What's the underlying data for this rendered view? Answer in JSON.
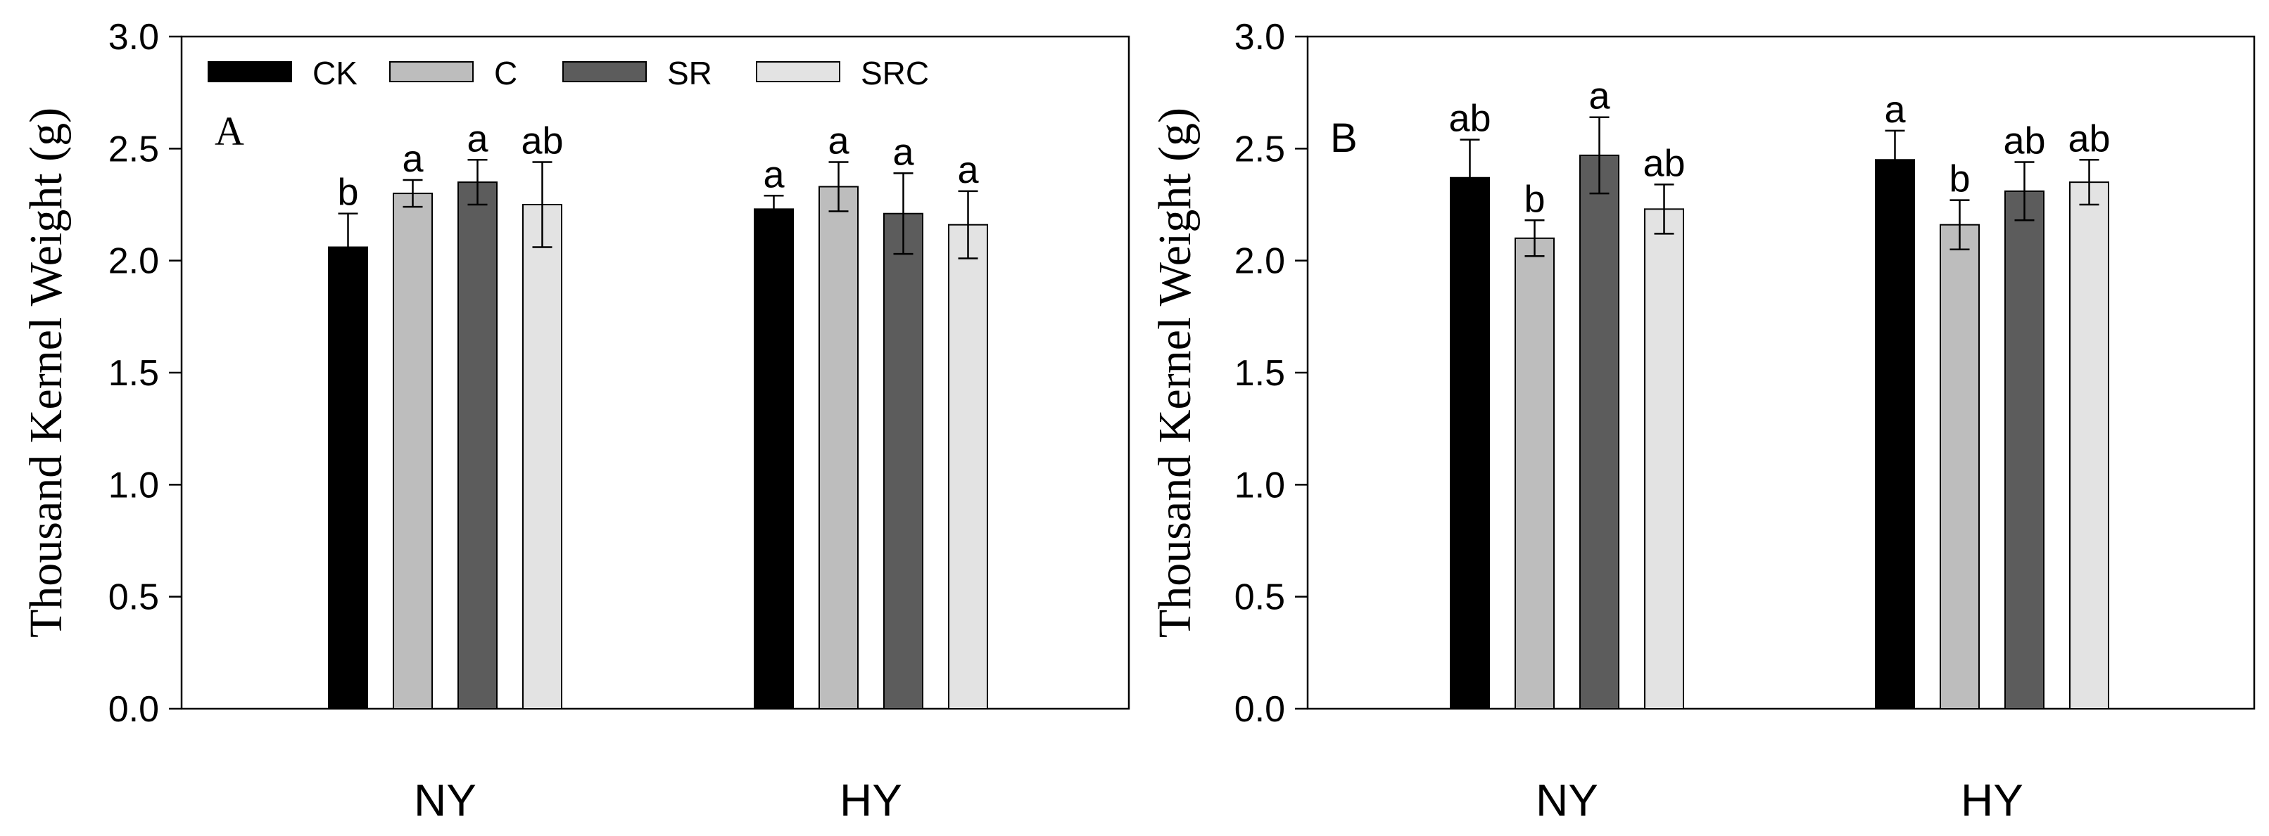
{
  "chart_data": [
    {
      "type": "bar",
      "panel_label": "A",
      "panel_label_font": "serif",
      "ylabel": "Thousand Kernel Weight (g)",
      "xlabel": "",
      "ylim": [
        0,
        3.0
      ],
      "yticks": [
        "0.0",
        "0.5",
        "1.0",
        "1.5",
        "2.0",
        "2.5",
        "3.0"
      ],
      "grid": false,
      "legend": {
        "placement": "top-left",
        "entries": [
          "CK",
          "C",
          "SR",
          "SRC"
        ]
      },
      "categories": [
        "NY",
        "HY"
      ],
      "series": [
        {
          "name": "CK",
          "color": "#000000",
          "values": [
            2.06,
            2.23
          ],
          "errors": [
            0.15,
            0.06
          ],
          "letters": [
            "b",
            "a"
          ]
        },
        {
          "name": "C",
          "color": "#bdbdbd",
          "values": [
            2.3,
            2.33
          ],
          "errors": [
            0.06,
            0.11
          ],
          "letters": [
            "a",
            "a"
          ]
        },
        {
          "name": "SR",
          "color": "#5c5c5c",
          "values": [
            2.35,
            2.21
          ],
          "errors": [
            0.1,
            0.18
          ],
          "letters": [
            "a",
            "a"
          ]
        },
        {
          "name": "SRC",
          "color": "#e3e3e3",
          "values": [
            2.25,
            2.16
          ],
          "errors": [
            0.19,
            0.15
          ],
          "letters": [
            "ab",
            "a"
          ]
        }
      ]
    },
    {
      "type": "bar",
      "panel_label": "B",
      "panel_label_font": "sans",
      "ylabel": "Thousand Kernel Weight (g)",
      "xlabel": "",
      "ylim": [
        0,
        3.0
      ],
      "yticks": [
        "0.0",
        "0.5",
        "1.0",
        "1.5",
        "2.0",
        "2.5",
        "3.0"
      ],
      "grid": false,
      "legend": null,
      "categories": [
        "NY",
        "HY"
      ],
      "series": [
        {
          "name": "CK",
          "color": "#000000",
          "values": [
            2.37,
            2.45
          ],
          "errors": [
            0.17,
            0.13
          ],
          "letters": [
            "ab",
            "a"
          ]
        },
        {
          "name": "C",
          "color": "#bdbdbd",
          "values": [
            2.1,
            2.16
          ],
          "errors": [
            0.08,
            0.11
          ],
          "letters": [
            "b",
            "b"
          ]
        },
        {
          "name": "SR",
          "color": "#5c5c5c",
          "values": [
            2.47,
            2.31
          ],
          "errors": [
            0.17,
            0.13
          ],
          "letters": [
            "a",
            "ab"
          ]
        },
        {
          "name": "SRC",
          "color": "#e3e3e3",
          "values": [
            2.23,
            2.35
          ],
          "errors": [
            0.11,
            0.1
          ],
          "letters": [
            "ab",
            "ab"
          ]
        }
      ]
    }
  ]
}
